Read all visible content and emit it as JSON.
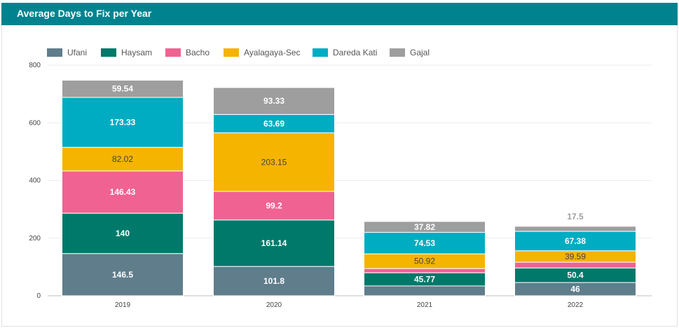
{
  "header": {
    "title": "Average Days to Fix per Year"
  },
  "chart_data": {
    "type": "bar",
    "stacked": true,
    "title": "Average Days to Fix per Year",
    "categories": [
      "2019",
      "2020",
      "2021",
      "2022"
    ],
    "ylim": [
      0,
      800
    ],
    "yticks": [
      0,
      200,
      400,
      600,
      800
    ],
    "grid": true,
    "legend_position": "top-left",
    "series": [
      {
        "name": "Ufani",
        "color": "#607d8b",
        "label_color": "#ffffff",
        "values": [
          146.5,
          101.8,
          34.1,
          46
        ]
      },
      {
        "name": "Haysam",
        "color": "#00796b",
        "label_color": "#ffffff",
        "values": [
          140,
          161.14,
          45.77,
          50.4
        ]
      },
      {
        "name": "Bacho",
        "color": "#f06292",
        "label_color": "#ffffff",
        "values": [
          146.43,
          99.2,
          14.6,
          20.1
        ]
      },
      {
        "name": "Ayalagaya-Sec",
        "color": "#f4b400",
        "label_color": "#444444",
        "values": [
          82.02,
          203.15,
          50.92,
          39.59
        ]
      },
      {
        "name": "Dareda Kati",
        "color": "#00acc1",
        "label_color": "#ffffff",
        "values": [
          173.33,
          63.69,
          74.53,
          67.38
        ]
      },
      {
        "name": "Gajal",
        "color": "#9e9e9e",
        "label_color": "#ffffff",
        "values": [
          59.54,
          93.33,
          37.82,
          17.5
        ]
      }
    ],
    "data_labels": [
      [
        "146.5",
        "140",
        "146.43",
        "82.02",
        "173.33",
        "59.54"
      ],
      [
        "101.8",
        "161.14",
        "99.2",
        "203.15",
        "63.69",
        "93.33"
      ],
      [
        "",
        "45.77",
        "",
        "50.92",
        "74.53",
        "37.82"
      ],
      [
        "46",
        "50.4",
        "",
        "39.59",
        "67.38",
        "17.5"
      ]
    ]
  }
}
